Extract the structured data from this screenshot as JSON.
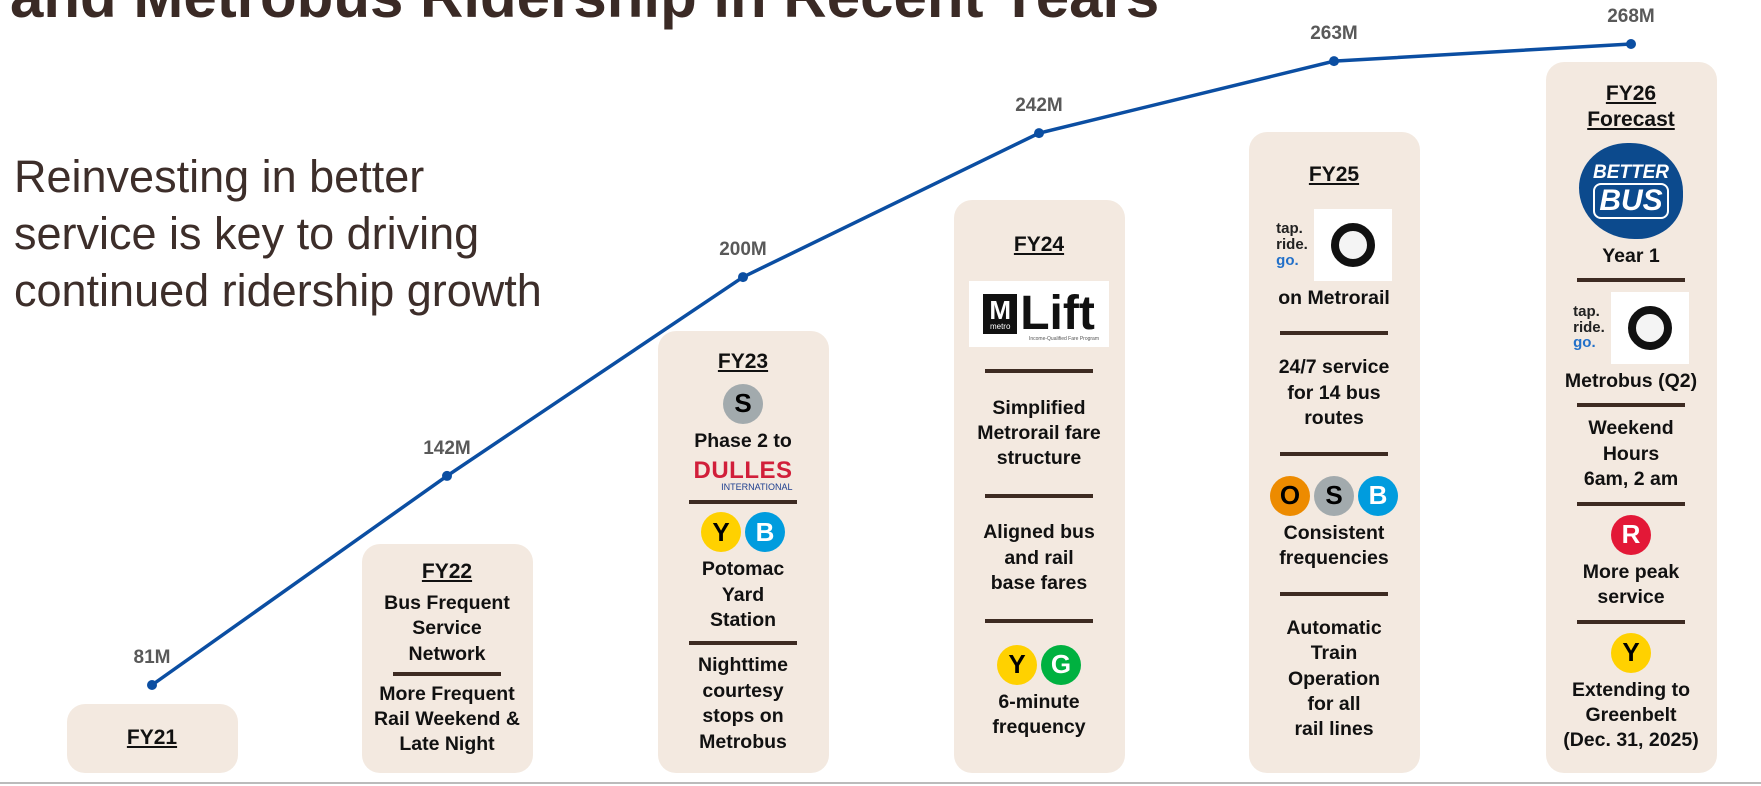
{
  "chart_data": {
    "type": "line",
    "title": "and Metrobus Ridership in Recent Years",
    "subtitle": "Reinvesting in better service is key to driving continued ridership growth",
    "categories": [
      "FY21",
      "FY22",
      "FY23",
      "FY24",
      "FY25",
      "FY26\nForecast"
    ],
    "values": [
      81,
      142,
      200,
      242,
      263,
      268
    ],
    "value_labels": [
      "81M",
      "142M",
      "200M",
      "242M",
      "263M",
      "268M"
    ],
    "color": "#0b4ea2",
    "cards": [
      {
        "sections": []
      },
      {
        "sections": [
          [
            {
              "text": "Bus Frequent\nService\nNetwork"
            }
          ],
          [
            {
              "text": "More Frequent\nRail Weekend &\nLate Night"
            }
          ]
        ]
      },
      {
        "sections": [
          [
            {
              "badges": [
                {
                  "letter": "S",
                  "color": "#a2aaad",
                  "text_color": "#000000"
                }
              ]
            },
            {
              "text": "Phase 2 to"
            },
            {
              "dulles": {
                "name": "DULLES",
                "sub": "INTERNATIONAL"
              }
            }
          ],
          [
            {
              "badges": [
                {
                  "letter": "Y",
                  "color": "#ffd100",
                  "text_color": "#000000"
                },
                {
                  "letter": "B",
                  "color": "#009cde",
                  "text_color": "#ffffff"
                }
              ]
            },
            {
              "text": "Potomac\nYard\nStation"
            }
          ],
          [
            {
              "text": "Nighttime\ncourtesy\nstops on\nMetrobus"
            }
          ]
        ]
      },
      {
        "sections": [
          [
            {
              "lift": {
                "brand": "M",
                "small": "metro",
                "name": "Lift",
                "tagline": "Income-Qualified Fare Program"
              }
            }
          ],
          [
            {
              "text": "Simplified\nMetrorail fare\nstructure"
            }
          ],
          [
            {
              "text": "Aligned bus\nand rail\nbase fares"
            }
          ],
          [
            {
              "badges": [
                {
                  "letter": "Y",
                  "color": "#ffd100",
                  "text_color": "#000000"
                },
                {
                  "letter": "G",
                  "color": "#00b140",
                  "text_color": "#ffffff"
                }
              ]
            },
            {
              "text": "6-minute\nfrequency"
            }
          ]
        ]
      },
      {
        "sections": [
          [
            {
              "tap": [
                "tap.",
                "ride.",
                "go."
              ]
            },
            {
              "text": "on Metrorail"
            }
          ],
          [
            {
              "text": "24/7 service\nfor 14 bus\nroutes"
            }
          ],
          [
            {
              "badges": [
                {
                  "letter": "O",
                  "color": "#ed8b00",
                  "text_color": "#000000"
                },
                {
                  "letter": "S",
                  "color": "#a2aaad",
                  "text_color": "#000000"
                },
                {
                  "letter": "B",
                  "color": "#009cde",
                  "text_color": "#ffffff"
                }
              ]
            },
            {
              "text": "Consistent\nfrequencies"
            }
          ],
          [
            {
              "text": "Automatic\nTrain\nOperation\nfor all\nrail lines"
            }
          ]
        ]
      },
      {
        "sections": [
          [
            {
              "bus": [
                "BETTER",
                "BUS"
              ]
            },
            {
              "text": "Year 1"
            }
          ],
          [
            {
              "tap": [
                "tap.",
                "ride.",
                "go."
              ]
            },
            {
              "text": "Metrobus (Q2)"
            }
          ],
          [
            {
              "text": "Weekend\nHours\n6am, 2 am"
            }
          ],
          [
            {
              "badges": [
                {
                  "letter": "R",
                  "color": "#e31837",
                  "text_color": "#ffffff"
                }
              ]
            },
            {
              "text": "More peak\nservice"
            }
          ],
          [
            {
              "badges": [
                {
                  "letter": "Y",
                  "color": "#ffd100",
                  "text_color": "#000000"
                }
              ]
            },
            {
              "text": "Extending to\nGreenbelt\n(Dec. 31, 2025)"
            }
          ]
        ]
      }
    ]
  }
}
